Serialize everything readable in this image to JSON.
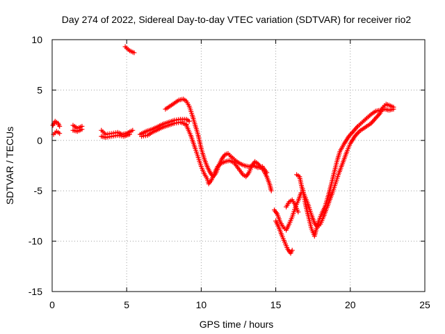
{
  "chart_data": {
    "type": "scatter",
    "title": "Day 274 of 2022, Sidereal Day-to-day VTEC variation (SDTVAR) for receiver rio2",
    "xlabel": "GPS time / hours",
    "ylabel": "SDTVAR / TECUs",
    "xlim": [
      0,
      25
    ],
    "ylim": [
      -15,
      10
    ],
    "xticks": [
      0,
      5,
      10,
      15,
      20,
      25
    ],
    "yticks": [
      -15,
      -10,
      -5,
      0,
      5,
      10
    ],
    "grid": true,
    "marker": "plus",
    "color": "#ff0000",
    "series": [
      {
        "segments": [
          [
            [
              0.05,
              1.5
            ],
            [
              0.2,
              1.9
            ],
            [
              0.4,
              1.7
            ],
            [
              0.5,
              1.4
            ]
          ],
          [
            [
              0.1,
              0.6
            ],
            [
              0.3,
              0.9
            ],
            [
              0.5,
              0.7
            ]
          ],
          [
            [
              1.4,
              1.5
            ],
            [
              1.7,
              1.2
            ],
            [
              2.0,
              1.4
            ]
          ],
          [
            [
              1.4,
              1.0
            ],
            [
              1.7,
              0.9
            ],
            [
              2.0,
              1.1
            ]
          ],
          [
            [
              3.3,
              1.0
            ],
            [
              3.6,
              0.6
            ],
            [
              4.0,
              0.7
            ],
            [
              4.4,
              0.8
            ],
            [
              4.7,
              0.6
            ],
            [
              5.0,
              0.7
            ],
            [
              5.4,
              1.0
            ]
          ],
          [
            [
              3.3,
              0.4
            ],
            [
              3.6,
              0.3
            ],
            [
              4.0,
              0.4
            ],
            [
              4.4,
              0.5
            ],
            [
              4.8,
              0.4
            ],
            [
              5.2,
              0.6
            ]
          ],
          [
            [
              4.9,
              9.3
            ],
            [
              5.2,
              8.9
            ],
            [
              5.5,
              8.7
            ]
          ],
          [
            [
              5.9,
              0.6
            ],
            [
              6.3,
              0.9
            ],
            [
              6.7,
              1.1
            ],
            [
              7.0,
              1.3
            ],
            [
              7.4,
              1.6
            ],
            [
              7.8,
              1.8
            ],
            [
              8.2,
              2.0
            ],
            [
              8.6,
              2.1
            ],
            [
              9.0,
              2.1
            ],
            [
              9.2,
              1.9
            ]
          ],
          [
            [
              6.0,
              0.4
            ],
            [
              6.4,
              0.5
            ],
            [
              6.7,
              0.8
            ],
            [
              7.0,
              1.0
            ],
            [
              7.4,
              1.3
            ],
            [
              7.8,
              1.5
            ],
            [
              8.2,
              1.7
            ],
            [
              8.6,
              1.8
            ],
            [
              9.0,
              1.6
            ]
          ],
          [
            [
              7.6,
              3.1
            ],
            [
              7.9,
              3.4
            ],
            [
              8.2,
              3.7
            ],
            [
              8.5,
              4.0
            ],
            [
              8.8,
              4.1
            ],
            [
              9.0,
              3.9
            ],
            [
              9.2,
              3.4
            ],
            [
              9.4,
              2.5
            ],
            [
              9.6,
              1.5
            ],
            [
              9.8,
              0.5
            ],
            [
              10.0,
              -0.8
            ],
            [
              10.2,
              -1.8
            ],
            [
              10.4,
              -2.6
            ],
            [
              10.6,
              -3.2
            ],
            [
              10.8,
              -3.6
            ],
            [
              11.0,
              -3.2
            ],
            [
              11.2,
              -2.4
            ],
            [
              11.4,
              -1.8
            ],
            [
              11.6,
              -1.4
            ],
            [
              11.8,
              -1.3
            ],
            [
              12.0,
              -1.6
            ]
          ],
          [
            [
              9.0,
              1.5
            ],
            [
              9.3,
              0.5
            ],
            [
              9.6,
              -0.8
            ],
            [
              9.8,
              -1.7
            ],
            [
              10.0,
              -2.6
            ],
            [
              10.2,
              -3.3
            ],
            [
              10.4,
              -3.8
            ],
            [
              10.5,
              -4.3
            ],
            [
              10.7,
              -3.9
            ],
            [
              10.9,
              -3.2
            ],
            [
              11.1,
              -2.6
            ],
            [
              11.3,
              -2.3
            ],
            [
              11.6,
              -2.1
            ],
            [
              11.9,
              -2.0
            ],
            [
              12.2,
              -2.2
            ],
            [
              12.5,
              -2.8
            ],
            [
              12.8,
              -3.4
            ],
            [
              13.0,
              -3.6
            ],
            [
              13.2,
              -3.2
            ],
            [
              13.4,
              -2.5
            ],
            [
              13.6,
              -2.1
            ],
            [
              13.8,
              -2.3
            ],
            [
              14.0,
              -2.7
            ],
            [
              14.2,
              -3.0
            ],
            [
              14.4,
              -3.6
            ],
            [
              14.6,
              -4.4
            ],
            [
              14.7,
              -5.0
            ]
          ],
          [
            [
              12.0,
              -1.6
            ],
            [
              12.3,
              -2.0
            ],
            [
              12.6,
              -2.3
            ],
            [
              12.9,
              -2.5
            ],
            [
              13.2,
              -2.6
            ],
            [
              13.5,
              -2.5
            ],
            [
              13.8,
              -2.7
            ],
            [
              14.1,
              -2.6
            ],
            [
              14.4,
              -3.2
            ]
          ],
          [
            [
              14.9,
              -6.9
            ],
            [
              15.1,
              -7.3
            ],
            [
              15.3,
              -8.1
            ],
            [
              15.5,
              -8.6
            ],
            [
              15.7,
              -8.9
            ],
            [
              15.9,
              -8.3
            ],
            [
              16.1,
              -7.6
            ],
            [
              16.3,
              -6.7
            ],
            [
              16.5,
              -6.0
            ],
            [
              16.7,
              -5.2
            ]
          ],
          [
            [
              15.0,
              -8.0
            ],
            [
              15.2,
              -8.6
            ],
            [
              15.4,
              -9.4
            ],
            [
              15.6,
              -10.1
            ],
            [
              15.8,
              -10.8
            ],
            [
              16.0,
              -11.2
            ],
            [
              16.1,
              -10.9
            ]
          ],
          [
            [
              15.7,
              -6.6
            ],
            [
              15.9,
              -6.1
            ],
            [
              16.1,
              -5.9
            ],
            [
              16.3,
              -6.4
            ],
            [
              16.5,
              -7.1
            ]
          ],
          [
            [
              16.4,
              -3.4
            ],
            [
              16.6,
              -3.6
            ],
            [
              16.7,
              -4.3
            ],
            [
              16.8,
              -5.0
            ],
            [
              17.0,
              -5.7
            ],
            [
              17.2,
              -6.5
            ],
            [
              17.4,
              -7.4
            ],
            [
              17.6,
              -8.2
            ],
            [
              17.8,
              -8.6
            ],
            [
              18.0,
              -8.3
            ],
            [
              18.2,
              -7.6
            ],
            [
              18.4,
              -6.8
            ],
            [
              18.6,
              -6.0
            ],
            [
              18.8,
              -5.2
            ],
            [
              19.0,
              -4.3
            ],
            [
              19.2,
              -3.4
            ],
            [
              19.4,
              -2.6
            ],
            [
              19.6,
              -1.8
            ],
            [
              19.8,
              -1.0
            ],
            [
              20.0,
              -0.3
            ],
            [
              20.3,
              0.4
            ],
            [
              20.6,
              0.9
            ],
            [
              21.0,
              1.3
            ],
            [
              21.4,
              1.7
            ],
            [
              21.7,
              2.2
            ],
            [
              22.0,
              2.7
            ],
            [
              22.2,
              3.3
            ],
            [
              22.4,
              3.6
            ],
            [
              22.6,
              3.5
            ],
            [
              22.9,
              3.3
            ]
          ],
          [
            [
              16.8,
              -4.8
            ],
            [
              17.0,
              -6.4
            ],
            [
              17.2,
              -7.6
            ],
            [
              17.4,
              -8.8
            ],
            [
              17.6,
              -9.5
            ],
            [
              17.7,
              -8.9
            ],
            [
              17.9,
              -7.9
            ],
            [
              18.1,
              -7.2
            ],
            [
              18.3,
              -6.6
            ],
            [
              18.5,
              -5.6
            ],
            [
              18.7,
              -4.5
            ],
            [
              18.9,
              -3.3
            ],
            [
              19.1,
              -2.1
            ],
            [
              19.3,
              -1.1
            ],
            [
              19.6,
              -0.3
            ],
            [
              19.9,
              0.4
            ],
            [
              20.2,
              0.9
            ],
            [
              20.5,
              1.4
            ],
            [
              20.8,
              1.8
            ],
            [
              21.1,
              2.2
            ],
            [
              21.4,
              2.6
            ],
            [
              21.7,
              2.9
            ],
            [
              22.0,
              3.0
            ],
            [
              22.3,
              3.1
            ],
            [
              22.6,
              3.0
            ],
            [
              22.9,
              3.1
            ]
          ]
        ]
      }
    ]
  }
}
